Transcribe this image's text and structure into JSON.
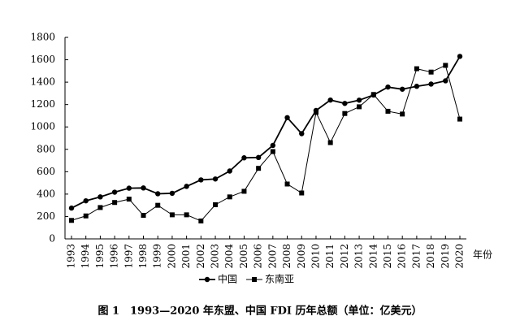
{
  "chart_data": {
    "type": "line",
    "title": "图 1　1993—2020 年东盟、中国 FDI 历年总额（单位：亿美元）",
    "xlabel": "年份",
    "categories": [
      "1993",
      "1994",
      "1995",
      "1996",
      "1997",
      "1998",
      "1999",
      "2000",
      "2001",
      "2002",
      "2003",
      "2004",
      "2005",
      "2006",
      "2007",
      "2008",
      "2009",
      "2010",
      "2011",
      "2012",
      "2013",
      "2014",
      "2015",
      "2016",
      "2017",
      "2018",
      "2019",
      "2020"
    ],
    "series": [
      {
        "name": "中国",
        "color": "#000000",
        "marker": "circle",
        "values": [
          275,
          340,
          375,
          417,
          453,
          455,
          403,
          407,
          469,
          527,
          535,
          606,
          724,
          727,
          835,
          1083,
          940,
          1147,
          1240,
          1210,
          1239,
          1285,
          1356,
          1337,
          1363,
          1383,
          1412,
          1630
        ]
      },
      {
        "name": "东南亚",
        "color": "#000000",
        "marker": "square",
        "values": [
          165,
          205,
          280,
          325,
          355,
          210,
          300,
          215,
          215,
          160,
          305,
          375,
          425,
          630,
          780,
          490,
          410,
          1130,
          860,
          1120,
          1180,
          1290,
          1140,
          1115,
          1520,
          1490,
          1550,
          1070
        ]
      }
    ],
    "ylim": [
      0,
      1800
    ],
    "yticks": [
      0,
      200,
      400,
      600,
      800,
      1000,
      1200,
      1400,
      1600,
      1800
    ],
    "grid": false,
    "legend": "bottom"
  }
}
